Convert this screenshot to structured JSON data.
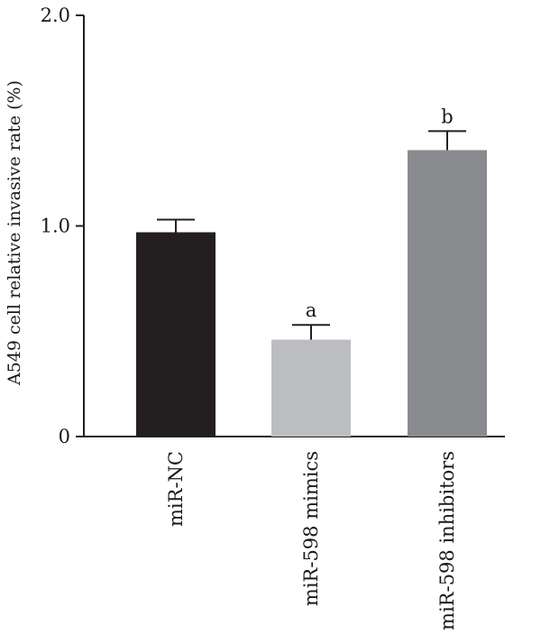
{
  "chart_data": {
    "type": "bar",
    "title": "",
    "xlabel": "",
    "ylabel": "A549 cell relative invasive rate (%)",
    "ylim": [
      0,
      2.0
    ],
    "yticks": [
      0,
      1.0,
      2.0
    ],
    "ytick_labels": [
      "0",
      "1.0",
      "2.0"
    ],
    "categories": [
      "miR-NC",
      "miR-598 mimics",
      "miR-598 inhibitors"
    ],
    "values": [
      0.97,
      0.46,
      1.36
    ],
    "errors": [
      0.06,
      0.07,
      0.09
    ],
    "annotations": [
      "",
      "a",
      "b"
    ],
    "colors": [
      "#231f20",
      "#bcbdc0",
      "#8a8b8e"
    ],
    "grid": false,
    "legend": "none"
  }
}
